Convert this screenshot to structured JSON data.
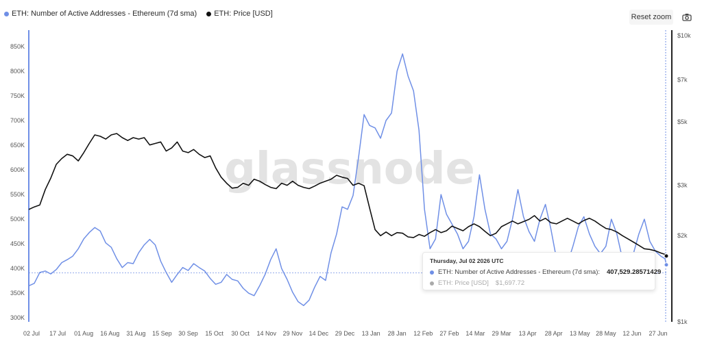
{
  "legend": {
    "series1": {
      "label": "ETH: Number of Active Addresses - Ethereum (7d sma)",
      "color": "#6f8fe6"
    },
    "series2": {
      "label": "ETH: Price [USD]",
      "color": "#111111"
    }
  },
  "toolbar": {
    "reset_label": "Reset zoom",
    "camera_icon": "camera-icon"
  },
  "watermark": "glassnode",
  "tooltip": {
    "date": "Thursday, Jul 02 2026 UTC",
    "row1": {
      "label": "ETH: Number of Active Addresses - Ethereum (7d sma):",
      "value": "407,529.28571429"
    },
    "row2": {
      "label": "ETH: Price [USD]",
      "value": "$1,697.72"
    }
  },
  "chart_data": {
    "type": "line",
    "x_ticks": [
      "02 Jul",
      "17 Jul",
      "01 Aug",
      "16 Aug",
      "31 Aug",
      "15 Sep",
      "30 Sep",
      "15 Oct",
      "30 Oct",
      "14 Nov",
      "29 Nov",
      "14 Dec",
      "29 Dec",
      "13 Jan",
      "28 Jan",
      "12 Feb",
      "27 Feb",
      "14 Mar",
      "29 Mar",
      "13 Apr",
      "28 Apr",
      "13 May",
      "28 May",
      "12 Jun",
      "27 Jun"
    ],
    "y_left": {
      "ticks": [
        300000,
        350000,
        400000,
        450000,
        500000,
        550000,
        600000,
        650000,
        700000,
        750000,
        800000,
        850000
      ],
      "tick_labels": [
        "300K",
        "350K",
        "400K",
        "450K",
        "500K",
        "550K",
        "600K",
        "650K",
        "700K",
        "750K",
        "800K",
        "850K"
      ],
      "ylim": [
        292000,
        872000
      ]
    },
    "y_right": {
      "scale": "log",
      "ticks": [
        1000,
        2000,
        3000,
        5000,
        7000,
        10000
      ],
      "tick_labels": [
        "$1k",
        "$2k",
        "$3k",
        "$5k",
        "$7k",
        "$10k"
      ],
      "ylim": [
        1000,
        10000
      ]
    },
    "reference_line_value": 391000,
    "series": [
      {
        "name": "ETH: Number of Active Addresses - Ethereum (7d sma)",
        "axis": "left",
        "color": "#6f8fe6",
        "points": [
          [
            0,
            365000
          ],
          [
            4,
            370000
          ],
          [
            8,
            392000
          ],
          [
            12,
            395000
          ],
          [
            16,
            389000
          ],
          [
            20,
            398000
          ],
          [
            24,
            412000
          ],
          [
            28,
            418000
          ],
          [
            32,
            425000
          ],
          [
            36,
            440000
          ],
          [
            40,
            460000
          ],
          [
            44,
            473000
          ],
          [
            48,
            483000
          ],
          [
            52,
            476000
          ],
          [
            56,
            452000
          ],
          [
            60,
            443000
          ],
          [
            64,
            420000
          ],
          [
            68,
            402000
          ],
          [
            72,
            412000
          ],
          [
            76,
            410000
          ],
          [
            80,
            432000
          ],
          [
            84,
            448000
          ],
          [
            88,
            459000
          ],
          [
            92,
            448000
          ],
          [
            96,
            415000
          ],
          [
            100,
            392000
          ],
          [
            104,
            372000
          ],
          [
            108,
            388000
          ],
          [
            112,
            402000
          ],
          [
            116,
            396000
          ],
          [
            120,
            410000
          ],
          [
            124,
            402000
          ],
          [
            128,
            395000
          ],
          [
            132,
            380000
          ],
          [
            136,
            368000
          ],
          [
            140,
            372000
          ],
          [
            144,
            388000
          ],
          [
            148,
            378000
          ],
          [
            152,
            375000
          ],
          [
            156,
            360000
          ],
          [
            160,
            350000
          ],
          [
            164,
            345000
          ],
          [
            168,
            365000
          ],
          [
            172,
            388000
          ],
          [
            176,
            418000
          ],
          [
            180,
            440000
          ],
          [
            184,
            400000
          ],
          [
            188,
            378000
          ],
          [
            192,
            352000
          ],
          [
            196,
            333000
          ],
          [
            200,
            325000
          ],
          [
            204,
            336000
          ],
          [
            208,
            362000
          ],
          [
            212,
            384000
          ],
          [
            216,
            376000
          ],
          [
            220,
            432000
          ],
          [
            224,
            470000
          ],
          [
            228,
            525000
          ],
          [
            232,
            520000
          ],
          [
            236,
            548000
          ],
          [
            240,
            625000
          ],
          [
            244,
            712000
          ],
          [
            248,
            690000
          ],
          [
            252,
            685000
          ],
          [
            256,
            664000
          ],
          [
            260,
            700000
          ],
          [
            264,
            715000
          ],
          [
            268,
            800000
          ],
          [
            272,
            835000
          ],
          [
            276,
            790000
          ],
          [
            280,
            760000
          ],
          [
            284,
            680000
          ],
          [
            288,
            520000
          ],
          [
            292,
            440000
          ],
          [
            296,
            460000
          ],
          [
            300,
            550000
          ],
          [
            304,
            510000
          ],
          [
            308,
            490000
          ],
          [
            312,
            470000
          ],
          [
            316,
            440000
          ],
          [
            320,
            455000
          ],
          [
            324,
            505000
          ],
          [
            328,
            590000
          ],
          [
            332,
            520000
          ],
          [
            336,
            470000
          ],
          [
            340,
            460000
          ],
          [
            344,
            440000
          ],
          [
            348,
            455000
          ],
          [
            352,
            500000
          ],
          [
            356,
            560000
          ],
          [
            360,
            505000
          ],
          [
            364,
            475000
          ],
          [
            368,
            455000
          ],
          [
            372,
            500000
          ],
          [
            376,
            530000
          ],
          [
            380,
            480000
          ],
          [
            384,
            420000
          ],
          [
            388,
            398000
          ],
          [
            392,
            410000
          ],
          [
            396,
            445000
          ],
          [
            400,
            485000
          ],
          [
            404,
            505000
          ],
          [
            408,
            470000
          ],
          [
            412,
            445000
          ],
          [
            416,
            430000
          ],
          [
            420,
            445000
          ],
          [
            424,
            500000
          ],
          [
            428,
            470000
          ],
          [
            432,
            420000
          ],
          [
            436,
            405000
          ],
          [
            440,
            430000
          ],
          [
            444,
            470000
          ],
          [
            448,
            500000
          ],
          [
            452,
            455000
          ],
          [
            456,
            435000
          ],
          [
            460,
            425000
          ],
          [
            463,
            420000
          ],
          [
            464,
            407530
          ]
        ]
      },
      {
        "name": "ETH: Price [USD]",
        "axis": "right",
        "color": "#111111",
        "points": [
          [
            0,
            2470
          ],
          [
            4,
            2520
          ],
          [
            8,
            2560
          ],
          [
            12,
            2900
          ],
          [
            16,
            3180
          ],
          [
            20,
            3550
          ],
          [
            24,
            3720
          ],
          [
            28,
            3850
          ],
          [
            32,
            3800
          ],
          [
            36,
            3650
          ],
          [
            40,
            3900
          ],
          [
            44,
            4200
          ],
          [
            48,
            4500
          ],
          [
            52,
            4450
          ],
          [
            56,
            4350
          ],
          [
            60,
            4500
          ],
          [
            64,
            4550
          ],
          [
            68,
            4400
          ],
          [
            72,
            4300
          ],
          [
            76,
            4400
          ],
          [
            80,
            4350
          ],
          [
            84,
            4400
          ],
          [
            88,
            4150
          ],
          [
            92,
            4200
          ],
          [
            96,
            4250
          ],
          [
            100,
            3950
          ],
          [
            104,
            4050
          ],
          [
            108,
            4250
          ],
          [
            112,
            3950
          ],
          [
            116,
            3900
          ],
          [
            120,
            4000
          ],
          [
            124,
            3850
          ],
          [
            128,
            3750
          ],
          [
            132,
            3800
          ],
          [
            136,
            3450
          ],
          [
            140,
            3200
          ],
          [
            144,
            3050
          ],
          [
            148,
            2930
          ],
          [
            152,
            2950
          ],
          [
            156,
            3050
          ],
          [
            160,
            3000
          ],
          [
            164,
            3150
          ],
          [
            168,
            3100
          ],
          [
            172,
            3020
          ],
          [
            176,
            2950
          ],
          [
            180,
            2920
          ],
          [
            184,
            3050
          ],
          [
            188,
            3000
          ],
          [
            192,
            3100
          ],
          [
            196,
            3000
          ],
          [
            200,
            2950
          ],
          [
            204,
            2920
          ],
          [
            208,
            2980
          ],
          [
            212,
            3050
          ],
          [
            216,
            3100
          ],
          [
            220,
            3150
          ],
          [
            224,
            3250
          ],
          [
            228,
            3200
          ],
          [
            232,
            3170
          ],
          [
            236,
            3000
          ],
          [
            240,
            3050
          ],
          [
            244,
            2990
          ],
          [
            248,
            2500
          ],
          [
            252,
            2100
          ],
          [
            256,
            2000
          ],
          [
            260,
            2060
          ],
          [
            264,
            2000
          ],
          [
            268,
            2050
          ],
          [
            272,
            2040
          ],
          [
            276,
            1980
          ],
          [
            280,
            1970
          ],
          [
            284,
            2020
          ],
          [
            288,
            1990
          ],
          [
            292,
            2050
          ],
          [
            296,
            2100
          ],
          [
            300,
            2050
          ],
          [
            304,
            2080
          ],
          [
            308,
            2160
          ],
          [
            312,
            2120
          ],
          [
            316,
            2080
          ],
          [
            320,
            2150
          ],
          [
            324,
            2200
          ],
          [
            328,
            2150
          ],
          [
            332,
            2070
          ],
          [
            336,
            2000
          ],
          [
            340,
            2040
          ],
          [
            344,
            2150
          ],
          [
            348,
            2200
          ],
          [
            352,
            2250
          ],
          [
            356,
            2200
          ],
          [
            360,
            2240
          ],
          [
            364,
            2280
          ],
          [
            368,
            2350
          ],
          [
            372,
            2250
          ],
          [
            376,
            2300
          ],
          [
            380,
            2220
          ],
          [
            384,
            2200
          ],
          [
            388,
            2250
          ],
          [
            392,
            2300
          ],
          [
            396,
            2250
          ],
          [
            400,
            2200
          ],
          [
            404,
            2260
          ],
          [
            408,
            2300
          ],
          [
            412,
            2250
          ],
          [
            416,
            2180
          ],
          [
            420,
            2120
          ],
          [
            424,
            2100
          ],
          [
            428,
            2060
          ],
          [
            432,
            2000
          ],
          [
            436,
            1950
          ],
          [
            440,
            1900
          ],
          [
            444,
            1850
          ],
          [
            448,
            1800
          ],
          [
            452,
            1790
          ],
          [
            456,
            1770
          ],
          [
            460,
            1740
          ],
          [
            463,
            1720
          ],
          [
            464,
            1697.72
          ]
        ]
      }
    ],
    "x_domain": [
      0,
      464
    ],
    "grid": false,
    "legend_position": "top-left"
  }
}
